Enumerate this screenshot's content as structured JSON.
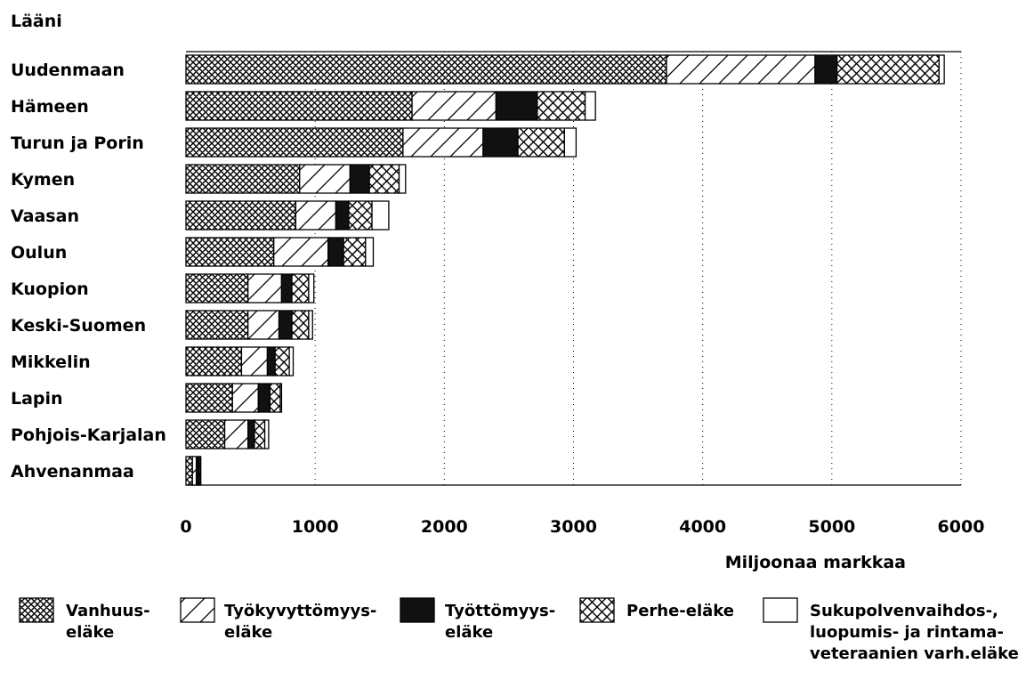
{
  "chart_data": {
    "type": "bar",
    "orientation": "horizontal",
    "stacked": true,
    "category_axis_title": "Lääni",
    "xlabel": "Miljoonaa markkaa",
    "xlim": [
      0,
      6000
    ],
    "xticks": [
      0,
      1000,
      2000,
      3000,
      4000,
      5000,
      6000
    ],
    "grid": "vertical-dotted",
    "legend_position": "bottom",
    "categories": [
      "Uudenmaan",
      "Hämeen",
      "Turun ja Porin",
      "Kymen",
      "Vaasan",
      "Oulun",
      "Kuopion",
      "Keski-Suomen",
      "Mikkelin",
      "Lapin",
      "Pohjois-Karjalan",
      "Ahvenanmaa"
    ],
    "series": [
      {
        "name": "Vanhuus-eläke",
        "lines": [
          "Vanhuus-",
          "eläke"
        ],
        "pattern": "crosshatch",
        "color": "#000000",
        "values": [
          3720,
          1750,
          1680,
          880,
          850,
          680,
          480,
          480,
          430,
          360,
          300,
          50
        ]
      },
      {
        "name": "Työkyvyttömyys-eläke",
        "lines": [
          "Työkyvyttömyys-",
          "eläke"
        ],
        "pattern": "diagonal",
        "color": "#000000",
        "values": [
          1150,
          650,
          620,
          390,
          310,
          420,
          260,
          240,
          200,
          200,
          180,
          30
        ]
      },
      {
        "name": "Työttömyys-eläke",
        "lines": [
          "Työttömyys-",
          "eläke"
        ],
        "pattern": "solid",
        "color": "#111111",
        "values": [
          170,
          320,
          270,
          150,
          100,
          120,
          80,
          100,
          60,
          90,
          50,
          20
        ]
      },
      {
        "name": "Perhe-eläke",
        "lines": [
          "Perhe-eläke"
        ],
        "pattern": "crosshatch-sparse",
        "color": "#000000",
        "values": [
          790,
          370,
          360,
          230,
          180,
          170,
          130,
          130,
          110,
          80,
          80,
          10
        ]
      },
      {
        "name": "Sukupolvenvaihdos-, luopumis- ja rintamaveteraanien varh.eläke",
        "lines": [
          "Sukupolvenvaihdos-,",
          "luopumis- ja rintama-",
          "veteraanien varh.eläke"
        ],
        "pattern": "none",
        "color": "#ffffff",
        "values": [
          40,
          80,
          90,
          50,
          130,
          60,
          40,
          30,
          30,
          10,
          30,
          5
        ]
      }
    ]
  }
}
